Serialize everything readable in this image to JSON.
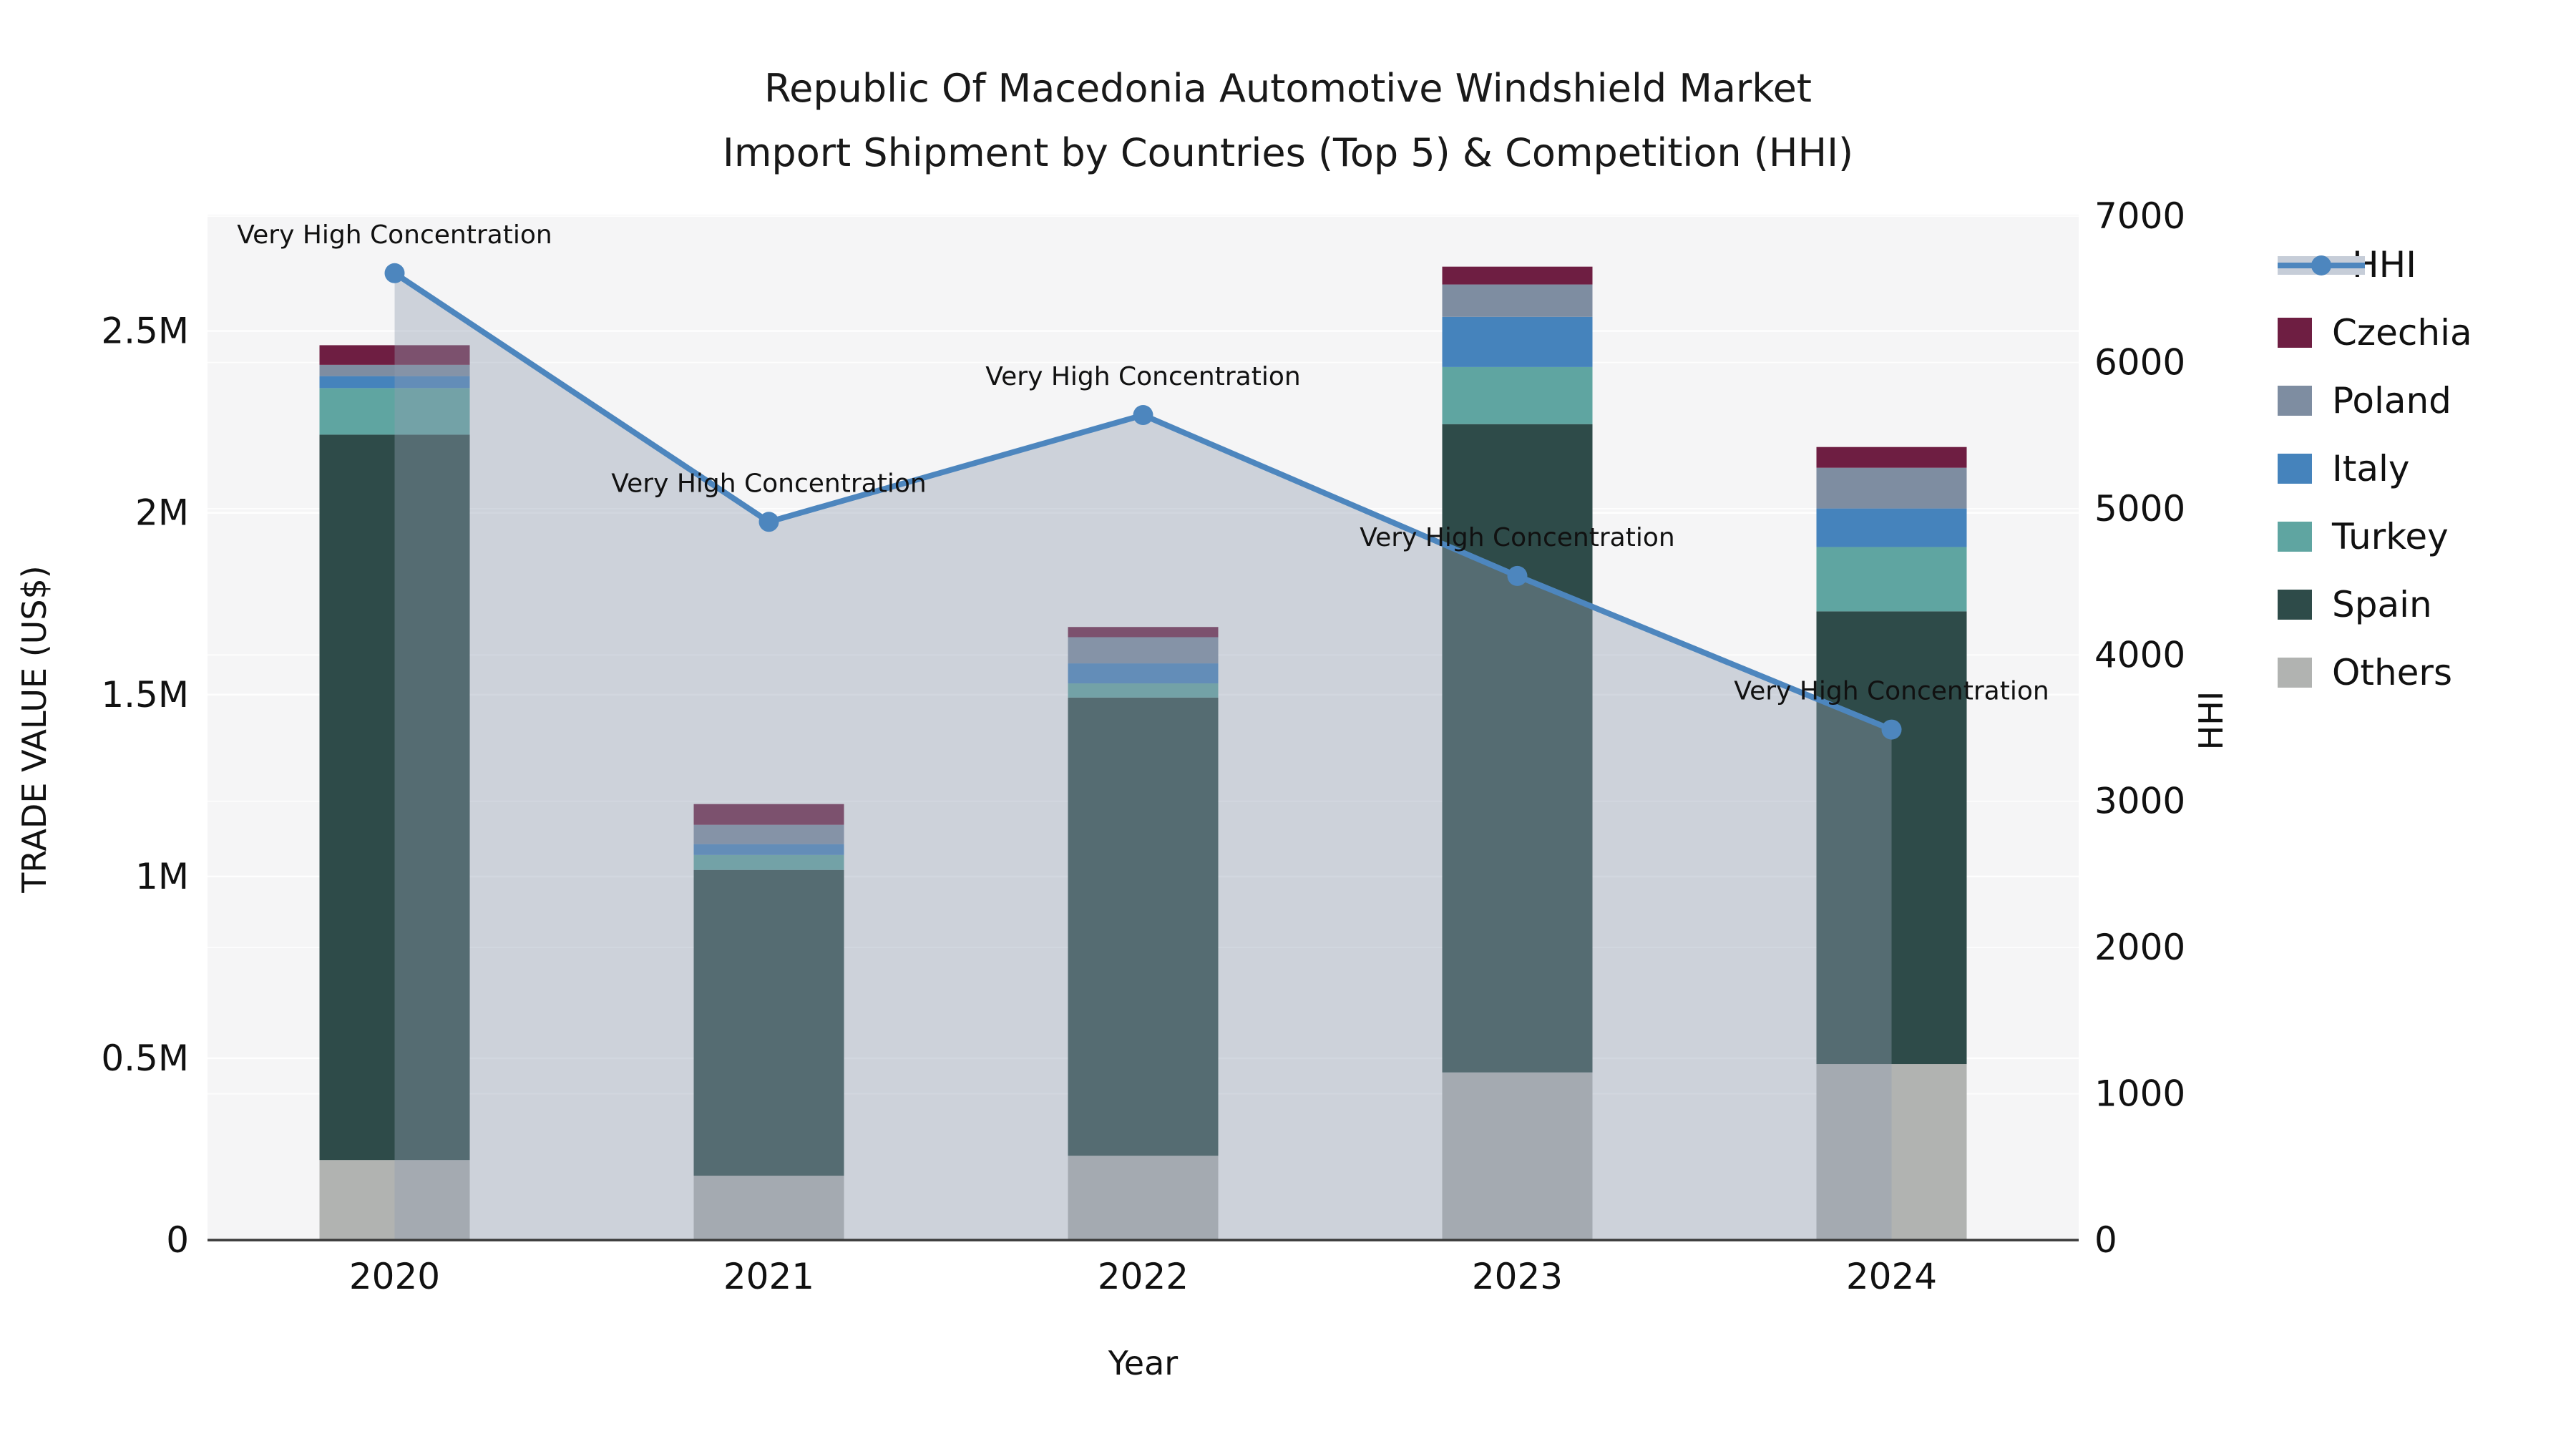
{
  "title": {
    "line1": "Republic Of Macedonia Automotive Windshield Market",
    "line2": "Import Shipment by Countries (Top 5) & Competition (HHI)"
  },
  "axes": {
    "y_left_title": "TRADE VALUE (US$)",
    "y_right_title": "HHI",
    "x_title": "Year"
  },
  "legend": {
    "items": [
      {
        "label": "HHI",
        "type": "line"
      },
      {
        "label": "Czechia",
        "type": "patch"
      },
      {
        "label": "Poland",
        "type": "patch"
      },
      {
        "label": "Italy",
        "type": "patch"
      },
      {
        "label": "Turkey",
        "type": "patch"
      },
      {
        "label": "Spain",
        "type": "patch"
      },
      {
        "label": "Others",
        "type": "patch"
      }
    ]
  },
  "colors": {
    "czechia": "#6E1E42",
    "poland": "#7E8DA1",
    "italy": "#4583BC",
    "turkey": "#5FA5A1",
    "spain": "#2E4B49",
    "others": "#B1B3B1",
    "hhi_line": "#4D86BE",
    "area_fill": "#919DB1",
    "area_fill_opacity": 0.4,
    "legend_band": "#C6CDD8",
    "plot_bg": "#F5F5F6",
    "grid": "#FFFFFF",
    "axis_line": "#3A3A3A",
    "text": "#111111"
  },
  "chart_data": {
    "type": "bar+line combo (stacked bars left axis, HHI line right axis)",
    "categories": [
      "2020",
      "2021",
      "2022",
      "2023",
      "2024"
    ],
    "stack_bottom_to_top": [
      "Others",
      "Spain",
      "Turkey",
      "Italy",
      "Poland",
      "Czechia"
    ],
    "series": [
      {
        "name": "Czechia",
        "color": "#6E1E42",
        "values": [
          54000,
          57000,
          28000,
          49000,
          57000
        ]
      },
      {
        "name": "Poland",
        "color": "#7E8DA1",
        "values": [
          31000,
          53000,
          72000,
          89000,
          112000
        ]
      },
      {
        "name": "Italy",
        "color": "#4583BC",
        "values": [
          33000,
          30000,
          55000,
          138000,
          106000
        ]
      },
      {
        "name": "Turkey",
        "color": "#5FA5A1",
        "values": [
          128000,
          41000,
          39000,
          157000,
          177000
        ]
      },
      {
        "name": "Spain",
        "color": "#2E4B49",
        "values": [
          1995000,
          841000,
          1260000,
          1783000,
          1245000
        ]
      },
      {
        "name": "Others",
        "color": "#B1B3B1",
        "values": [
          220000,
          177000,
          232000,
          461000,
          484000
        ]
      }
    ],
    "line_series": {
      "name": "HHI",
      "color": "#4D86BE",
      "values": [
        6610,
        4910,
        5640,
        4540,
        3490
      ],
      "annotations": [
        "Very High Concentration",
        "Very High Concentration",
        "Very High Concentration",
        "Very High Concentration",
        "Very High Concentration"
      ]
    },
    "y_left": {
      "ticks": [
        0,
        500000,
        1000000,
        1500000,
        2000000,
        2500000
      ],
      "tick_labels": [
        "0",
        "0.5M",
        "1M",
        "1.5M",
        "2M",
        "2.5M"
      ],
      "max": 2820000,
      "grid": true
    },
    "y_right": {
      "ticks": [
        0,
        1000,
        2000,
        3000,
        4000,
        5000,
        6000,
        7000
      ],
      "tick_labels": [
        "0",
        "1000",
        "2000",
        "3000",
        "4000",
        "5000",
        "6000",
        "7000"
      ],
      "max": 7010,
      "grid": true
    },
    "xlabel": "Year",
    "ylabel_left": "TRADE VALUE (US$)",
    "ylabel_right": "HHI",
    "legend_position": "right-outside"
  }
}
